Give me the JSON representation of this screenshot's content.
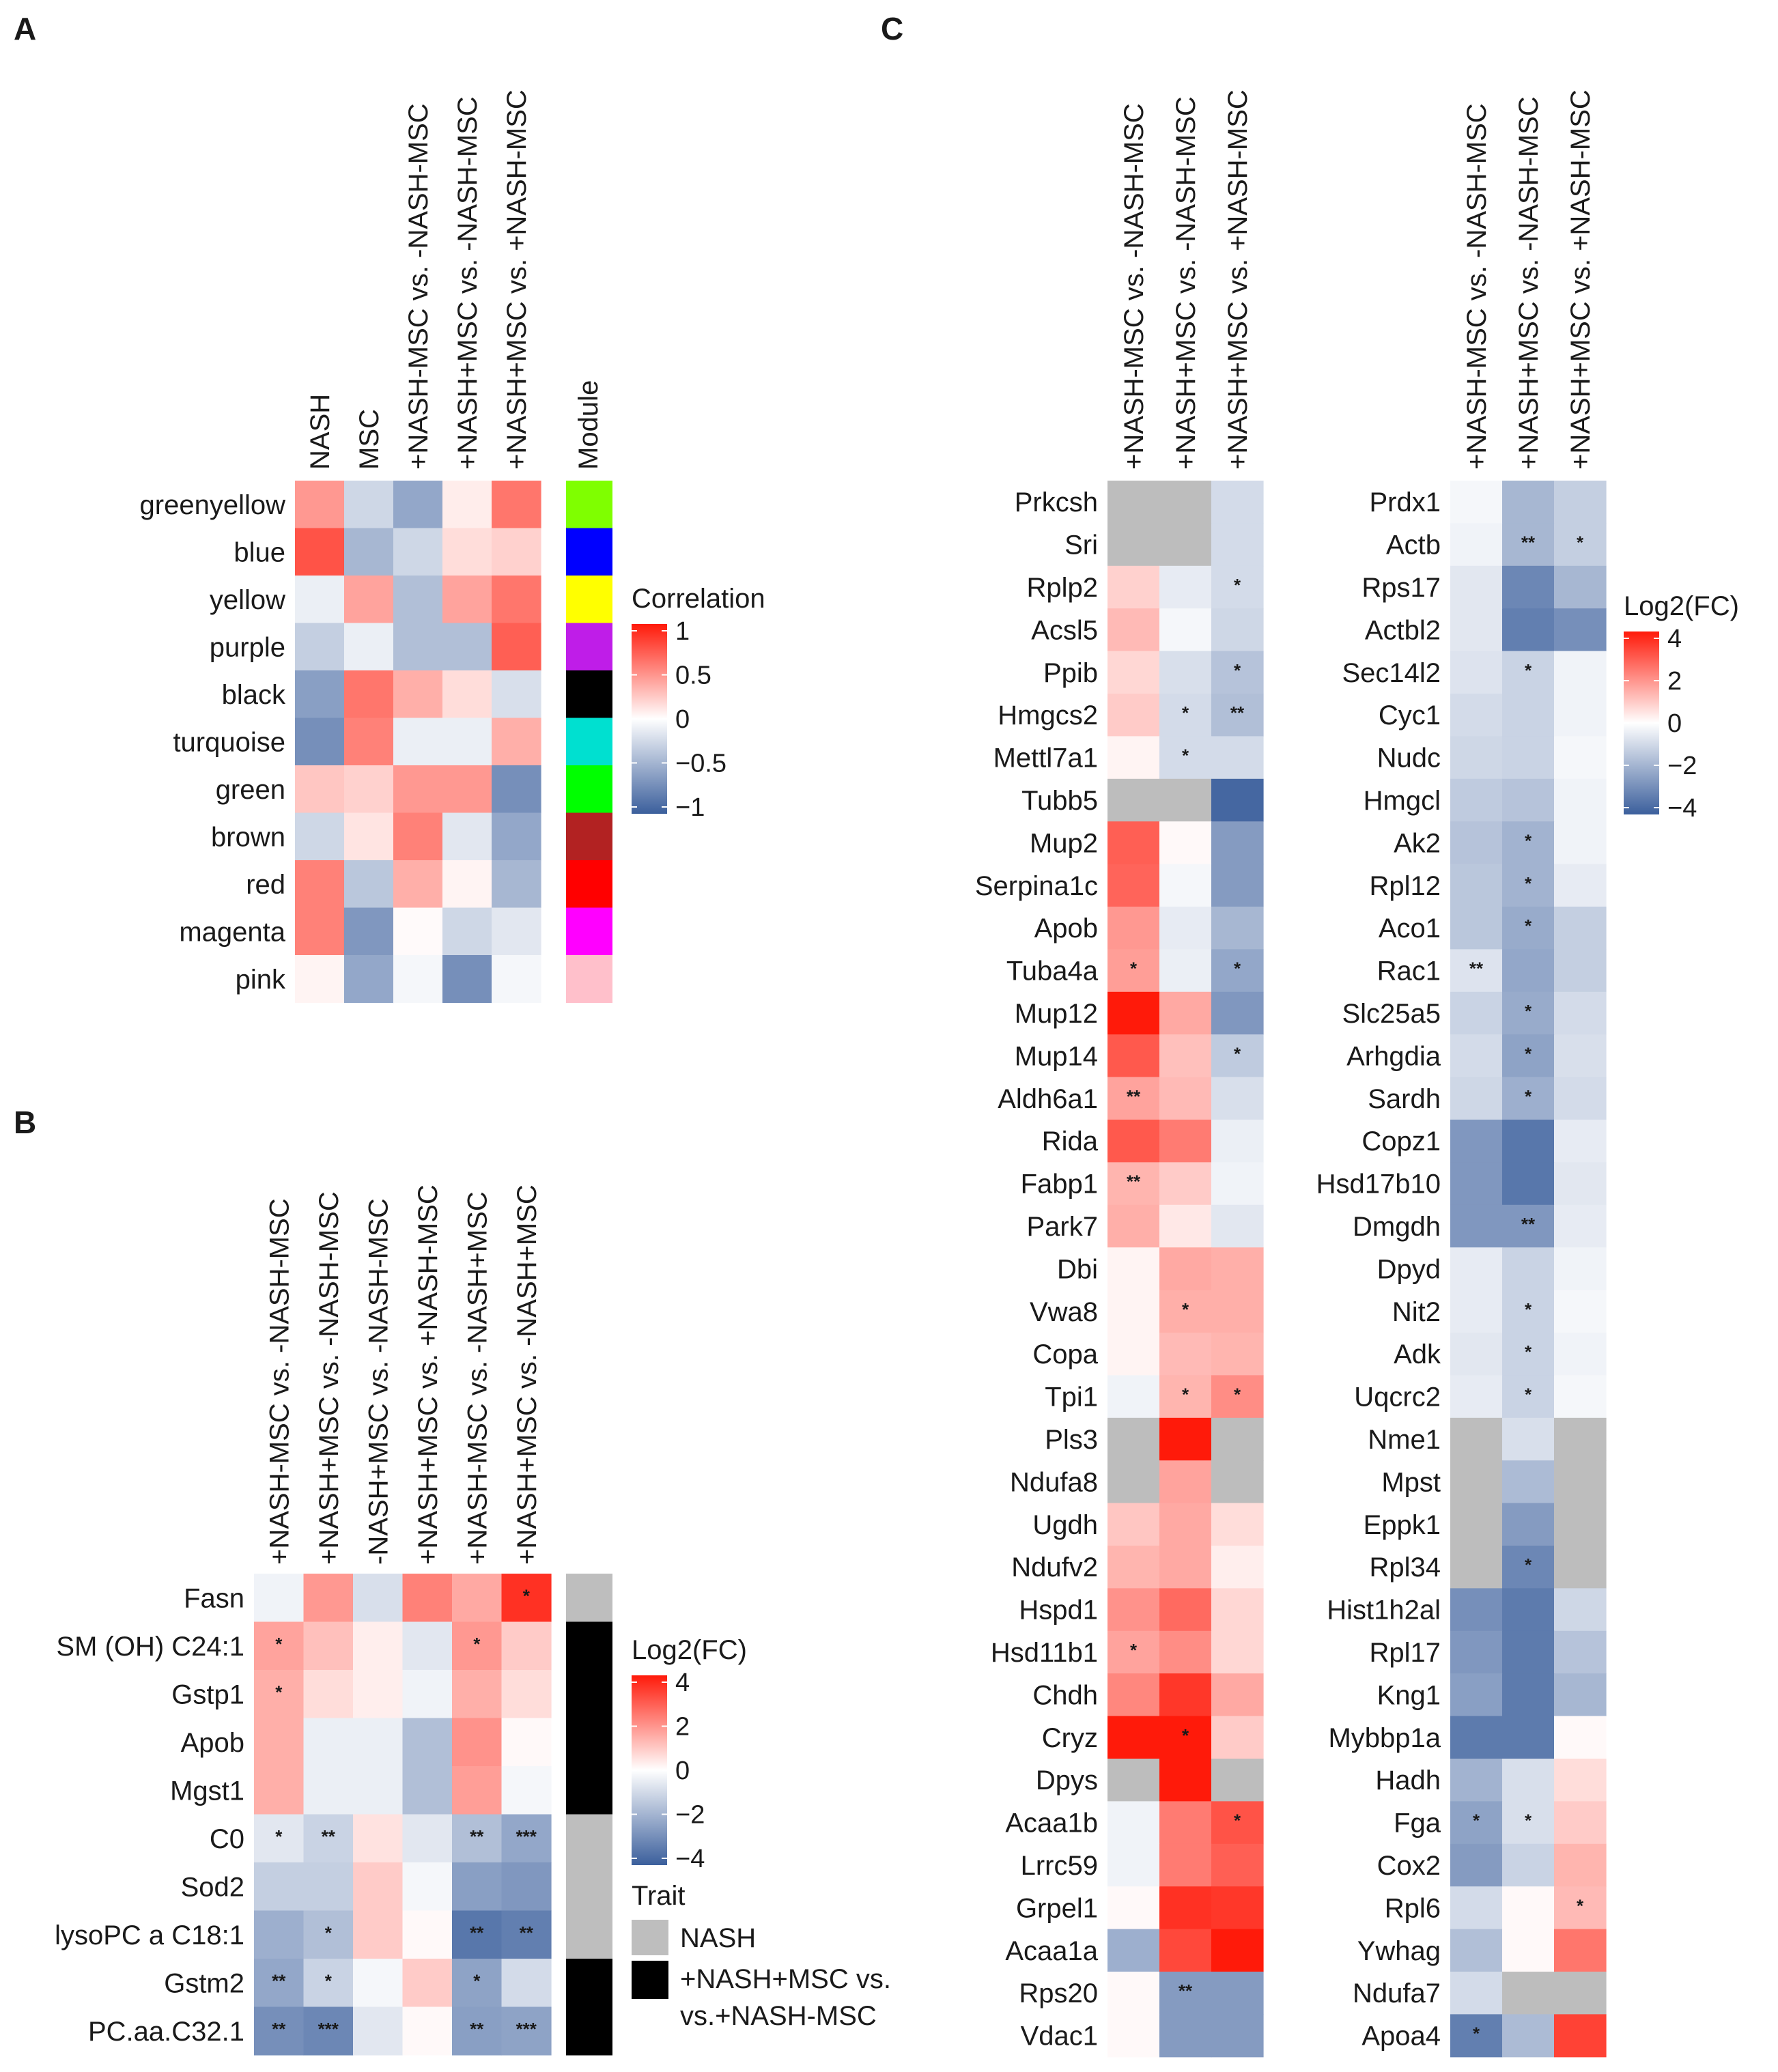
{
  "panels": {
    "A": {
      "letter": "A"
    },
    "B": {
      "letter": "B"
    },
    "C": {
      "letter": "C"
    }
  },
  "colors": {
    "neg": "#3b5f9c",
    "mid": "#ffffff",
    "pos": "#ff1a0a",
    "na": "#bdbdbd",
    "trait_nash": "#bebebe",
    "trait_comb": "#000000"
  },
  "chart_data": [
    {
      "id": "A",
      "type": "heatmap",
      "title": "",
      "columns": [
        "NASH",
        "MSC",
        "+NASH-MSC vs. -NASH-MSC",
        "+NASH+MSC vs. -NASH-MSC",
        "+NASH+MSC vs. +NASH-MSC"
      ],
      "module_label": "Module",
      "rows": [
        "greenyellow",
        "blue",
        "yellow",
        "purple",
        "black",
        "turquoise",
        "green",
        "brown",
        "red",
        "magenta",
        "pink"
      ],
      "module_colors": [
        "#7fff00",
        "#0000ff",
        "#ffff00",
        "#bf1de8",
        "#000000",
        "#00e0d0",
        "#00ff00",
        "#b22222",
        "#ff0000",
        "#ff00ff",
        "#ffc0cb"
      ],
      "values": [
        [
          0.45,
          -0.25,
          -0.55,
          0.08,
          0.6
        ],
        [
          0.75,
          -0.45,
          -0.25,
          0.15,
          0.2
        ],
        [
          -0.1,
          0.4,
          -0.4,
          0.4,
          0.6
        ],
        [
          -0.3,
          -0.1,
          -0.4,
          -0.4,
          0.7
        ],
        [
          -0.6,
          0.6,
          0.35,
          0.15,
          -0.2
        ],
        [
          -0.7,
          0.55,
          -0.1,
          -0.1,
          0.35
        ],
        [
          0.25,
          0.2,
          0.45,
          0.45,
          -0.7
        ],
        [
          -0.25,
          0.12,
          0.55,
          -0.15,
          -0.55
        ],
        [
          0.55,
          -0.35,
          0.35,
          0.05,
          -0.45
        ],
        [
          0.55,
          -0.65,
          0.02,
          -0.25,
          -0.15
        ],
        [
          0.05,
          -0.55,
          -0.05,
          -0.7,
          -0.05
        ]
      ],
      "legend": {
        "title": "Correlation",
        "range": [
          -1,
          1
        ],
        "ticks": [
          "1",
          "0.5",
          "0",
          "−0.5",
          "−1"
        ]
      }
    },
    {
      "id": "B",
      "type": "heatmap",
      "title": "",
      "columns": [
        "+NASH-MSC vs. -NASH-MSC",
        "+NASH+MSC vs. -NASH-MSC",
        "-NASH+MSC vs. -NASH-MSC",
        "+NASH+MSC vs. +NASH-MSC",
        "+NASH-MSC vs. -NASH+MSC",
        "+NASH+MSC vs. -NASH+MSC"
      ],
      "rows": [
        "Fasn",
        "SM (OH) C24:1",
        "Gstp1",
        "Apob",
        "Mgst1",
        "C0",
        "Sod2",
        "lysoPC a C18:1",
        "Gstm2",
        "PC.aa.C32.1"
      ],
      "values": [
        [
          -0.3,
          1.8,
          -0.8,
          2.2,
          1.5,
          3.6
        ],
        [
          1.6,
          1.1,
          0.3,
          -0.6,
          1.8,
          0.9
        ],
        [
          1.4,
          0.6,
          0.3,
          -0.3,
          1.4,
          0.6
        ],
        [
          1.4,
          -0.4,
          -0.4,
          -1.6,
          1.9,
          0.1
        ],
        [
          1.4,
          -0.4,
          -0.4,
          -1.6,
          1.7,
          -0.2
        ],
        [
          -0.6,
          -1.1,
          0.5,
          -0.6,
          -1.6,
          -2.2
        ],
        [
          -1.2,
          -1.2,
          0.9,
          -0.2,
          -2.4,
          -2.6
        ],
        [
          -2.0,
          -1.6,
          0.9,
          0.1,
          -3.4,
          -3.2
        ],
        [
          -2.2,
          -1.1,
          -0.2,
          0.9,
          -2.3,
          -0.9
        ],
        [
          -2.8,
          -3.0,
          -0.6,
          0.1,
          -2.4,
          -2.3
        ]
      ],
      "stars": [
        [
          "",
          "",
          "",
          "",
          "",
          "*"
        ],
        [
          "*",
          "",
          "",
          "",
          "*",
          ""
        ],
        [
          "*",
          "",
          "",
          "",
          "",
          ""
        ],
        [
          "",
          "",
          "",
          "",
          "",
          ""
        ],
        [
          "",
          "",
          "",
          "",
          "",
          ""
        ],
        [
          "*",
          "**",
          "",
          "",
          "**",
          "***"
        ],
        [
          "",
          "",
          "",
          "",
          "",
          ""
        ],
        [
          "",
          "*",
          "",
          "",
          "**",
          "**"
        ],
        [
          "**",
          "*",
          "",
          "",
          "*",
          ""
        ],
        [
          "**",
          "***",
          "",
          "",
          "**",
          "***"
        ]
      ],
      "trait": [
        "NASH",
        "+NASH+MSC vs. +NASH-MSC",
        "+NASH+MSC vs. +NASH-MSC",
        "+NASH+MSC vs. +NASH-MSC",
        "+NASH+MSC vs. +NASH-MSC",
        "NASH",
        "NASH",
        "NASH",
        "+NASH+MSC vs. +NASH-MSC",
        "+NASH+MSC vs. +NASH-MSC"
      ],
      "legend": {
        "title": "Log2(FC)",
        "range": [
          -4,
          4
        ],
        "ticks": [
          "4",
          "2",
          "0",
          "−2",
          "−4"
        ]
      },
      "trait_legend": {
        "title": "Trait",
        "items": [
          "NASH",
          "+NASH+MSC vs.",
          "vs.+NASH-MSC"
        ]
      }
    },
    {
      "id": "C_left",
      "type": "heatmap",
      "title": "",
      "columns": [
        "+NASH-MSC vs. -NASH-MSC",
        "+NASH+MSC vs. -NASH-MSC",
        "+NASH+MSC vs. +NASH-MSC"
      ],
      "rows": [
        "Prkcsh",
        "Sri",
        "Rplp2",
        "Acsl5",
        "Ppib",
        "Hmgcs2",
        "Mettl7a1",
        "Tubb5",
        "Mup2",
        "Serpina1c",
        "Apob",
        "Tuba4a",
        "Mup12",
        "Mup14",
        "Aldh6a1",
        "Rida",
        "Fabp1",
        "Park7",
        "Dbi",
        "Vwa8",
        "Copa",
        "Tpi1",
        "Pls3",
        "Ndufa8",
        "Ugdh",
        "Ndufv2",
        "Hspd1",
        "Hsd11b1",
        "Chdh",
        "Cryz",
        "Dpys",
        "Acaa1b",
        "Lrrc59",
        "Grpel1",
        "Acaa1a",
        "Rps20",
        "Vdac1"
      ],
      "values": [
        [
          null,
          null,
          -0.9
        ],
        [
          null,
          null,
          -0.9
        ],
        [
          0.8,
          -0.5,
          -0.9
        ],
        [
          1.2,
          -0.2,
          -1.0
        ],
        [
          0.7,
          -0.8,
          -1.5
        ],
        [
          0.9,
          -0.9,
          -1.6
        ],
        [
          0.2,
          -0.9,
          -0.9
        ],
        [
          null,
          null,
          -3.8
        ],
        [
          2.8,
          0.1,
          -2.5
        ],
        [
          2.7,
          -0.2,
          -2.5
        ],
        [
          1.8,
          -0.5,
          -1.8
        ],
        [
          1.7,
          -0.4,
          -2.2
        ],
        [
          4.0,
          1.5,
          -2.6
        ],
        [
          2.9,
          1.1,
          -1.3
        ],
        [
          1.6,
          1.2,
          -0.8
        ],
        [
          2.9,
          2.3,
          -0.4
        ],
        [
          1.3,
          0.9,
          -0.3
        ],
        [
          1.4,
          0.4,
          -0.6
        ],
        [
          0.2,
          1.5,
          1.4
        ],
        [
          0.2,
          1.4,
          1.4
        ],
        [
          0.2,
          1.2,
          1.3
        ],
        [
          -0.3,
          1.3,
          2.0
        ],
        [
          null,
          4.0,
          null
        ],
        [
          null,
          1.6,
          null
        ],
        [
          1.0,
          1.5,
          0.6
        ],
        [
          1.3,
          1.5,
          0.3
        ],
        [
          1.9,
          2.6,
          0.7
        ],
        [
          1.6,
          2.0,
          0.7
        ],
        [
          2.1,
          3.5,
          1.5
        ],
        [
          4.0,
          4.0,
          0.9
        ],
        [
          null,
          4.0,
          null
        ],
        [
          -0.3,
          2.3,
          3.0
        ],
        [
          -0.3,
          2.3,
          2.8
        ],
        [
          0.1,
          3.6,
          3.5
        ],
        [
          -2.0,
          3.2,
          4.0
        ],
        [
          0.1,
          -2.5,
          -2.5
        ],
        [
          0.1,
          -2.5,
          -2.5
        ]
      ],
      "stars": [
        [
          "",
          "",
          ""
        ],
        [
          "",
          "",
          ""
        ],
        [
          "",
          "",
          "*"
        ],
        [
          "",
          "",
          ""
        ],
        [
          "",
          "",
          "*"
        ],
        [
          "",
          "*",
          "**"
        ],
        [
          "",
          "*",
          ""
        ],
        [
          "",
          "",
          ""
        ],
        [
          "",
          "",
          ""
        ],
        [
          "",
          "",
          ""
        ],
        [
          "",
          "",
          ""
        ],
        [
          "*",
          "",
          "*"
        ],
        [
          "",
          "",
          ""
        ],
        [
          "",
          "",
          "*"
        ],
        [
          "**",
          "",
          ""
        ],
        [
          "",
          "",
          ""
        ],
        [
          "**",
          "",
          ""
        ],
        [
          "",
          "",
          ""
        ],
        [
          "",
          "",
          ""
        ],
        [
          "",
          "*",
          ""
        ],
        [
          "",
          "",
          ""
        ],
        [
          "",
          "*",
          "*"
        ],
        [
          "",
          "",
          ""
        ],
        [
          "",
          "",
          ""
        ],
        [
          "",
          "",
          ""
        ],
        [
          "",
          "",
          ""
        ],
        [
          "",
          "",
          ""
        ],
        [
          "*",
          "",
          ""
        ],
        [
          "",
          "",
          ""
        ],
        [
          "",
          "*",
          ""
        ],
        [
          "",
          "",
          ""
        ],
        [
          "",
          "",
          "*"
        ],
        [
          "",
          "",
          ""
        ],
        [
          "",
          "",
          ""
        ],
        [
          "",
          "",
          ""
        ],
        [
          "",
          "**",
          ""
        ],
        [
          "",
          "",
          ""
        ]
      ]
    },
    {
      "id": "C_right",
      "type": "heatmap",
      "title": "",
      "columns": [
        "+NASH-MSC vs. -NASH-MSC",
        "+NASH+MSC vs. -NASH-MSC",
        "+NASH+MSC vs. +NASH-MSC"
      ],
      "rows": [
        "Prdx1",
        "Actb",
        "Rps17",
        "Actbl2",
        "Sec14l2",
        "Cyc1",
        "Nudc",
        "Hmgcl",
        "Ak2",
        "Rpl12",
        "Aco1",
        "Rac1",
        "Slc25a5",
        "Arhgdia",
        "Sardh",
        "Copz1",
        "Hsd17b10",
        "Dmgdh",
        "Dpyd",
        "Nit2",
        "Adk",
        "Uqcrc2",
        "Nme1",
        "Mpst",
        "Eppk1",
        "Rpl34",
        "Hist1h2al",
        "Rpl17",
        "Kng1",
        "Mybbp1a",
        "Hadh",
        "Fga",
        "Cox2",
        "Rpl6",
        "Ywhag",
        "Ndufa7",
        "Apoa4"
      ],
      "values": [
        [
          -0.2,
          -1.8,
          -1.2
        ],
        [
          -0.3,
          -1.8,
          -1.2
        ],
        [
          -0.6,
          -3.0,
          -1.8
        ],
        [
          -0.6,
          -3.2,
          -2.8
        ],
        [
          -0.7,
          -1.1,
          -0.3
        ],
        [
          -0.9,
          -1.1,
          -0.3
        ],
        [
          -1.0,
          -1.1,
          -0.2
        ],
        [
          -1.3,
          -1.5,
          -0.3
        ],
        [
          -1.5,
          -1.9,
          -0.3
        ],
        [
          -1.4,
          -1.9,
          -0.5
        ],
        [
          -1.4,
          -2.1,
          -1.2
        ],
        [
          -0.7,
          -2.2,
          -1.2
        ],
        [
          -1.1,
          -2.1,
          -0.9
        ],
        [
          -0.9,
          -2.3,
          -0.8
        ],
        [
          -1.0,
          -2.0,
          -0.9
        ],
        [
          -2.6,
          -3.4,
          -0.5
        ],
        [
          -2.6,
          -3.4,
          -0.6
        ],
        [
          -2.6,
          -2.6,
          -0.5
        ],
        [
          -0.5,
          -1.1,
          -0.3
        ],
        [
          -0.5,
          -1.1,
          -0.2
        ],
        [
          -0.6,
          -1.1,
          -0.3
        ],
        [
          -0.5,
          -1.1,
          -0.2
        ],
        [
          null,
          -0.8,
          null
        ],
        [
          null,
          -1.7,
          null
        ],
        [
          null,
          -2.5,
          null
        ],
        [
          null,
          -3.0,
          null
        ],
        [
          -2.8,
          -3.3,
          -1.0
        ],
        [
          -2.6,
          -3.3,
          -1.5
        ],
        [
          -2.4,
          -3.3,
          -1.8
        ],
        [
          -3.3,
          -3.3,
          0.1
        ],
        [
          -1.9,
          -0.8,
          0.6
        ],
        [
          -2.3,
          -0.8,
          0.9
        ],
        [
          -2.5,
          -1.1,
          1.3
        ],
        [
          -0.9,
          0.1,
          1.2
        ],
        [
          -1.6,
          0.1,
          2.4
        ],
        [
          -0.9,
          null,
          null
        ],
        [
          -3.2,
          -1.7,
          3.3
        ]
      ],
      "stars": [
        [
          "",
          "",
          ""
        ],
        [
          "",
          "**",
          "*"
        ],
        [
          "",
          "",
          ""
        ],
        [
          "",
          "",
          ""
        ],
        [
          "",
          "*",
          ""
        ],
        [
          "",
          "",
          ""
        ],
        [
          "",
          "",
          ""
        ],
        [
          "",
          "",
          ""
        ],
        [
          "",
          "*",
          ""
        ],
        [
          "",
          "*",
          ""
        ],
        [
          "",
          "*",
          ""
        ],
        [
          "**",
          "",
          ""
        ],
        [
          "",
          "*",
          ""
        ],
        [
          "",
          "*",
          ""
        ],
        [
          "",
          "*",
          ""
        ],
        [
          "",
          "",
          ""
        ],
        [
          "",
          "",
          ""
        ],
        [
          "",
          "**",
          ""
        ],
        [
          "",
          "",
          ""
        ],
        [
          "",
          "*",
          ""
        ],
        [
          "",
          "*",
          ""
        ],
        [
          "",
          "*",
          ""
        ],
        [
          "",
          "",
          ""
        ],
        [
          "",
          "",
          ""
        ],
        [
          "",
          "",
          ""
        ],
        [
          "",
          "*",
          ""
        ],
        [
          "",
          "",
          ""
        ],
        [
          "",
          "",
          ""
        ],
        [
          "",
          "",
          ""
        ],
        [
          "",
          "",
          ""
        ],
        [
          "",
          "",
          ""
        ],
        [
          "*",
          "*",
          ""
        ],
        [
          "",
          "",
          ""
        ],
        [
          "",
          "",
          "*"
        ],
        [
          "",
          "",
          ""
        ],
        [
          "",
          "",
          ""
        ],
        [
          "*",
          "",
          ""
        ]
      ],
      "legend": {
        "title": "Log2(FC)",
        "range": [
          -4,
          4
        ],
        "ticks": [
          "4",
          "2",
          "0",
          "−2",
          "−4"
        ]
      }
    }
  ]
}
